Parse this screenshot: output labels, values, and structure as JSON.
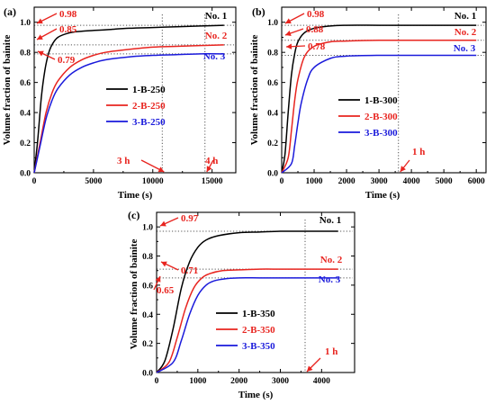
{
  "chart_data": [
    {
      "type": "line",
      "panel_letter": "(a)",
      "xlabel": "Time (s)",
      "ylabel": "Volume fraction of bainite",
      "xlim": [
        0,
        17000
      ],
      "ylim": [
        0,
        1.1
      ],
      "xticks": [
        0,
        5000,
        10000,
        15000
      ],
      "xtick_labels": [
        "0",
        "5000",
        "10000",
        "15000"
      ],
      "yticks": [
        0.0,
        0.2,
        0.4,
        0.6,
        0.8,
        1.0
      ],
      "ytick_labels": [
        "0.0",
        "0.2",
        "0.4",
        "0.6",
        "0.8",
        "1.0"
      ],
      "legend": [
        {
          "name": "1-B-250",
          "color": "#000000"
        },
        {
          "name": "2-B-250",
          "color": "#e8241f"
        },
        {
          "name": "3-B-250",
          "color": "#1a1adb"
        }
      ],
      "series": [
        {
          "name": "1-B-250",
          "color": "#000000",
          "x": [
            0,
            300,
            600,
            900,
            1200,
            1500,
            2000,
            3000,
            4000,
            6000,
            8000,
            10000,
            12000,
            14000,
            16000
          ],
          "y": [
            0,
            0.22,
            0.5,
            0.68,
            0.79,
            0.85,
            0.9,
            0.93,
            0.94,
            0.95,
            0.96,
            0.965,
            0.97,
            0.975,
            0.98
          ]
        },
        {
          "name": "2-B-250",
          "color": "#e8241f",
          "x": [
            0,
            500,
            1000,
            1500,
            2000,
            3000,
            4000,
            5000,
            6000,
            8000,
            10000,
            12000,
            14000,
            16000
          ],
          "y": [
            0,
            0.2,
            0.4,
            0.53,
            0.61,
            0.7,
            0.75,
            0.78,
            0.8,
            0.82,
            0.835,
            0.84,
            0.845,
            0.85
          ]
        },
        {
          "name": "3-B-250",
          "color": "#1a1adb",
          "x": [
            0,
            500,
            1000,
            1500,
            2000,
            3000,
            4000,
            5000,
            6000,
            8000,
            10000,
            12000,
            14000,
            16000
          ],
          "y": [
            0,
            0.18,
            0.36,
            0.48,
            0.56,
            0.65,
            0.7,
            0.73,
            0.75,
            0.77,
            0.78,
            0.785,
            0.79,
            0.79
          ]
        }
      ],
      "levels": [
        {
          "value": 0.98,
          "label": "0.98",
          "end_label": "No. 1",
          "color": "#000000"
        },
        {
          "value": 0.85,
          "label": "0.85",
          "end_label": "No. 2",
          "color": "#e8241f"
        },
        {
          "value": 0.79,
          "label": "0.79",
          "end_label": "No. 3",
          "color": "#1a1adb"
        }
      ],
      "time_marks": [
        {
          "x": 10800,
          "label": "3 h"
        },
        {
          "x": 14400,
          "label": "4 h"
        }
      ]
    },
    {
      "type": "line",
      "panel_letter": "(b)",
      "xlabel": "Time (s)",
      "ylabel": "Volume fraction of bainite",
      "xlim": [
        0,
        6300
      ],
      "ylim": [
        0,
        1.1
      ],
      "xticks": [
        0,
        1000,
        2000,
        3000,
        4000,
        5000,
        6000
      ],
      "xtick_labels": [
        "0",
        "1000",
        "2000",
        "3000",
        "4000",
        "5000",
        "6000"
      ],
      "yticks": [
        0.0,
        0.2,
        0.4,
        0.6,
        0.8,
        1.0
      ],
      "ytick_labels": [
        "0.0",
        "0.2",
        "0.4",
        "0.6",
        "0.8",
        "1.0"
      ],
      "legend": [
        {
          "name": "1-B-300",
          "color": "#000000"
        },
        {
          "name": "2-B-300",
          "color": "#e8241f"
        },
        {
          "name": "3-B-300",
          "color": "#1a1adb"
        }
      ],
      "series": [
        {
          "name": "1-B-300",
          "color": "#000000",
          "x": [
            0,
            100,
            200,
            300,
            400,
            500,
            700,
            1000,
            1500,
            2000,
            3000,
            4000,
            5000,
            6000
          ],
          "y": [
            0,
            0.12,
            0.4,
            0.65,
            0.79,
            0.87,
            0.93,
            0.96,
            0.975,
            0.98,
            0.98,
            0.98,
            0.98,
            0.98
          ]
        },
        {
          "name": "2-B-300",
          "color": "#e8241f",
          "x": [
            0,
            200,
            300,
            400,
            500,
            700,
            1000,
            1500,
            2000,
            3000,
            4000,
            5000,
            6000
          ],
          "y": [
            0,
            0.1,
            0.28,
            0.48,
            0.62,
            0.77,
            0.84,
            0.87,
            0.875,
            0.88,
            0.88,
            0.88,
            0.88
          ]
        },
        {
          "name": "3-B-300",
          "color": "#1a1adb",
          "x": [
            0,
            300,
            400,
            500,
            600,
            800,
            1000,
            1500,
            2000,
            3000,
            4000,
            5000,
            6000
          ],
          "y": [
            0,
            0.06,
            0.18,
            0.33,
            0.46,
            0.62,
            0.7,
            0.76,
            0.775,
            0.78,
            0.78,
            0.78,
            0.78
          ]
        }
      ],
      "levels": [
        {
          "value": 0.98,
          "label": "0.98",
          "end_label": "No. 1",
          "color": "#000000"
        },
        {
          "value": 0.88,
          "label": "0.88",
          "end_label": "No. 2",
          "color": "#e8241f"
        },
        {
          "value": 0.78,
          "label": "0.78",
          "end_label": "No. 3",
          "color": "#1a1adb"
        }
      ],
      "time_marks": [
        {
          "x": 3600,
          "label": "1 h"
        }
      ]
    },
    {
      "type": "line",
      "panel_letter": "(c)",
      "xlabel": "Time (s)",
      "ylabel": "Volume fraction of bainite",
      "xlim": [
        0,
        4800
      ],
      "ylim": [
        0,
        1.1
      ],
      "xticks": [
        0,
        1000,
        2000,
        3000,
        4000
      ],
      "xtick_labels": [
        "0",
        "1000",
        "2000",
        "3000",
        "4000"
      ],
      "yticks": [
        0.0,
        0.2,
        0.4,
        0.6,
        0.8,
        1.0
      ],
      "ytick_labels": [
        "0.0",
        "0.2",
        "0.4",
        "0.6",
        "0.8",
        "1.0"
      ],
      "legend": [
        {
          "name": "1-B-350",
          "color": "#000000"
        },
        {
          "name": "2-B-350",
          "color": "#e8241f"
        },
        {
          "name": "3-B-350",
          "color": "#1a1adb"
        }
      ],
      "series": [
        {
          "name": "1-B-350",
          "color": "#000000",
          "x": [
            0,
            200,
            400,
            600,
            800,
            1000,
            1200,
            1500,
            2000,
            2500,
            3000,
            3500,
            4000,
            4400
          ],
          "y": [
            0,
            0.08,
            0.3,
            0.58,
            0.76,
            0.86,
            0.91,
            0.94,
            0.96,
            0.965,
            0.97,
            0.97,
            0.97,
            0.97
          ]
        },
        {
          "name": "2-B-350",
          "color": "#e8241f",
          "x": [
            0,
            300,
            500,
            700,
            900,
            1100,
            1300,
            1600,
            2000,
            2500,
            3000,
            3500,
            4000,
            4400
          ],
          "y": [
            0,
            0.07,
            0.24,
            0.44,
            0.58,
            0.65,
            0.68,
            0.7,
            0.705,
            0.71,
            0.71,
            0.71,
            0.71,
            0.71
          ]
        },
        {
          "name": "3-B-350",
          "color": "#1a1adb",
          "x": [
            0,
            400,
            600,
            800,
            1000,
            1200,
            1400,
            1700,
            2000,
            2500,
            3000,
            3500,
            4000,
            4400
          ],
          "y": [
            0,
            0.07,
            0.22,
            0.4,
            0.53,
            0.6,
            0.63,
            0.645,
            0.65,
            0.65,
            0.65,
            0.65,
            0.65,
            0.65
          ]
        }
      ],
      "levels": [
        {
          "value": 0.97,
          "label": "0.97",
          "end_label": "No. 1",
          "color": "#000000"
        },
        {
          "value": 0.71,
          "label": "0.71",
          "end_label": "No. 2",
          "color": "#e8241f"
        },
        {
          "value": 0.65,
          "label": "0.65",
          "end_label": "No. 3",
          "color": "#1a1adb"
        }
      ],
      "time_marks": [
        {
          "x": 3600,
          "label": "1 h"
        }
      ]
    }
  ]
}
